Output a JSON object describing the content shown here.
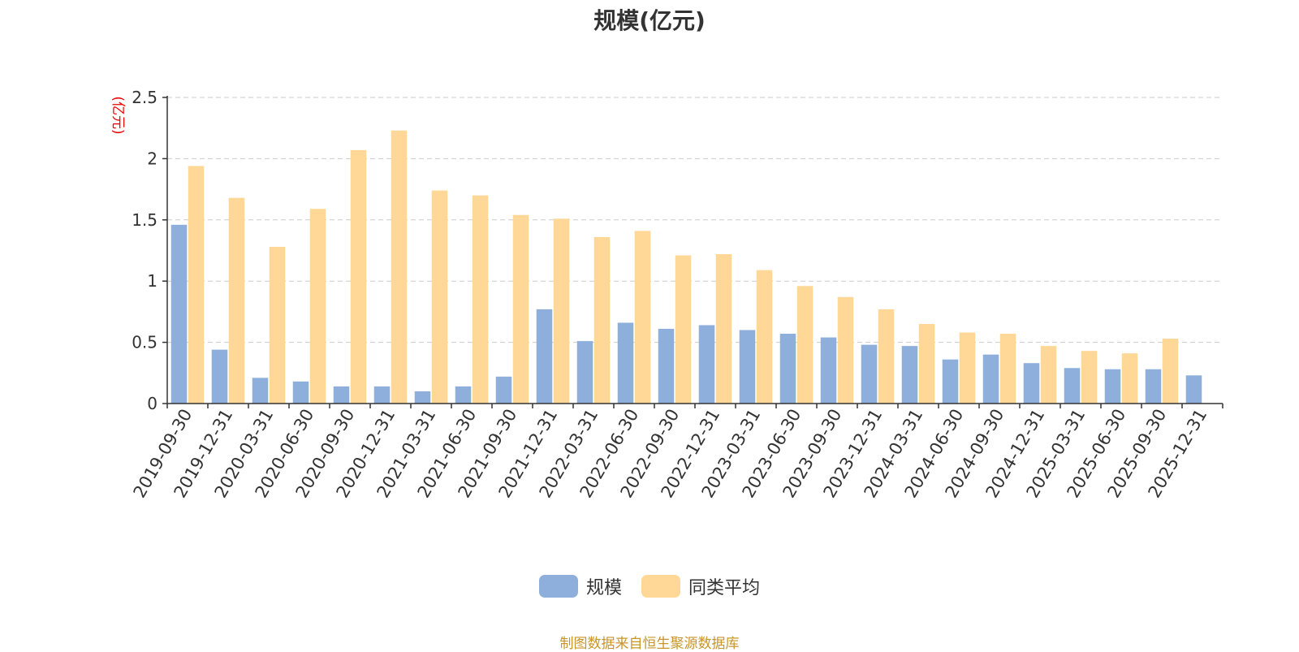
{
  "title": "规模(亿元)",
  "source": "制图数据来自恒生聚源数据库",
  "colors": {
    "series_1": "#8eaedb",
    "series_2": "#ffd898",
    "grid": "#cccccc",
    "axis": "#333333"
  },
  "chart_data": {
    "type": "bar",
    "title": "规模(亿元)",
    "ylabel": "(亿元)",
    "xlabel": "",
    "ylim": [
      0,
      2.5
    ],
    "yticks": [
      "0",
      "0.5",
      "1",
      "1.5",
      "2",
      "2.5"
    ],
    "grid": true,
    "legend_position": "bottom-center",
    "categories": [
      "2019-09-30",
      "2019-12-31",
      "2020-03-31",
      "2020-06-30",
      "2020-09-30",
      "2020-12-31",
      "2021-03-31",
      "2021-06-30",
      "2021-09-30",
      "2021-12-31",
      "2022-03-31",
      "2022-06-30",
      "2022-09-30",
      "2022-12-31",
      "2023-03-31",
      "2023-06-30",
      "2023-09-30",
      "2023-12-31",
      "2024-03-31",
      "2024-06-30",
      "2024-09-30",
      "2024-12-31",
      "2025-03-31",
      "2025-06-30",
      "2025-09-30",
      "2025-12-31"
    ],
    "series": [
      {
        "name": "规模",
        "values": [
          1.46,
          0.44,
          0.21,
          0.18,
          0.14,
          0.14,
          0.1,
          0.14,
          0.22,
          0.77,
          0.51,
          0.66,
          0.61,
          0.64,
          0.6,
          0.57,
          0.54,
          0.48,
          0.47,
          0.36,
          0.4,
          0.33,
          0.29,
          0.28,
          0.28,
          0.23
        ]
      },
      {
        "name": "同类平均",
        "values": [
          1.94,
          1.68,
          1.28,
          1.59,
          2.07,
          2.23,
          1.74,
          1.7,
          1.54,
          1.51,
          1.36,
          1.41,
          1.21,
          1.22,
          1.09,
          0.96,
          0.87,
          0.77,
          0.65,
          0.58,
          0.57,
          0.47,
          0.43,
          0.41,
          0.53,
          null
        ]
      }
    ]
  }
}
